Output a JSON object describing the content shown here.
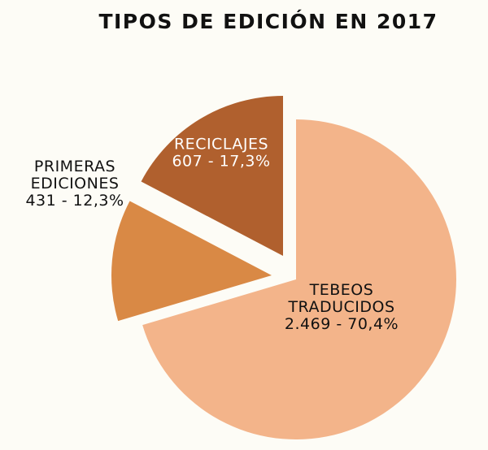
{
  "chart_data": {
    "type": "pie",
    "title": "TIPOS DE EDICIÓN EN 2017",
    "slices": [
      {
        "name": "TEBEOS TRADUCIDOS",
        "label_lines": [
          "TEBEOS",
          "TRADUCIDOS",
          "2.469 - 70,4%"
        ],
        "value": 2469,
        "percent": 70.4,
        "color": "#f3b48a",
        "text_color": "#111111",
        "exploded": false
      },
      {
        "name": "PRIMERAS EDICIONES",
        "label_lines": [
          "PRIMERAS",
          "EDICIONES",
          "431 - 12,3%"
        ],
        "value": 431,
        "percent": 12.3,
        "color": "#d98945",
        "text_color": "#111111",
        "exploded": true
      },
      {
        "name": "RECICLAJES",
        "label_lines": [
          "RECICLAJES",
          "607 - 17,3%"
        ],
        "value": 607,
        "percent": 17.3,
        "color": "#b0602e",
        "text_color": "#ffffff",
        "exploded": true
      }
    ],
    "legend": "none"
  }
}
